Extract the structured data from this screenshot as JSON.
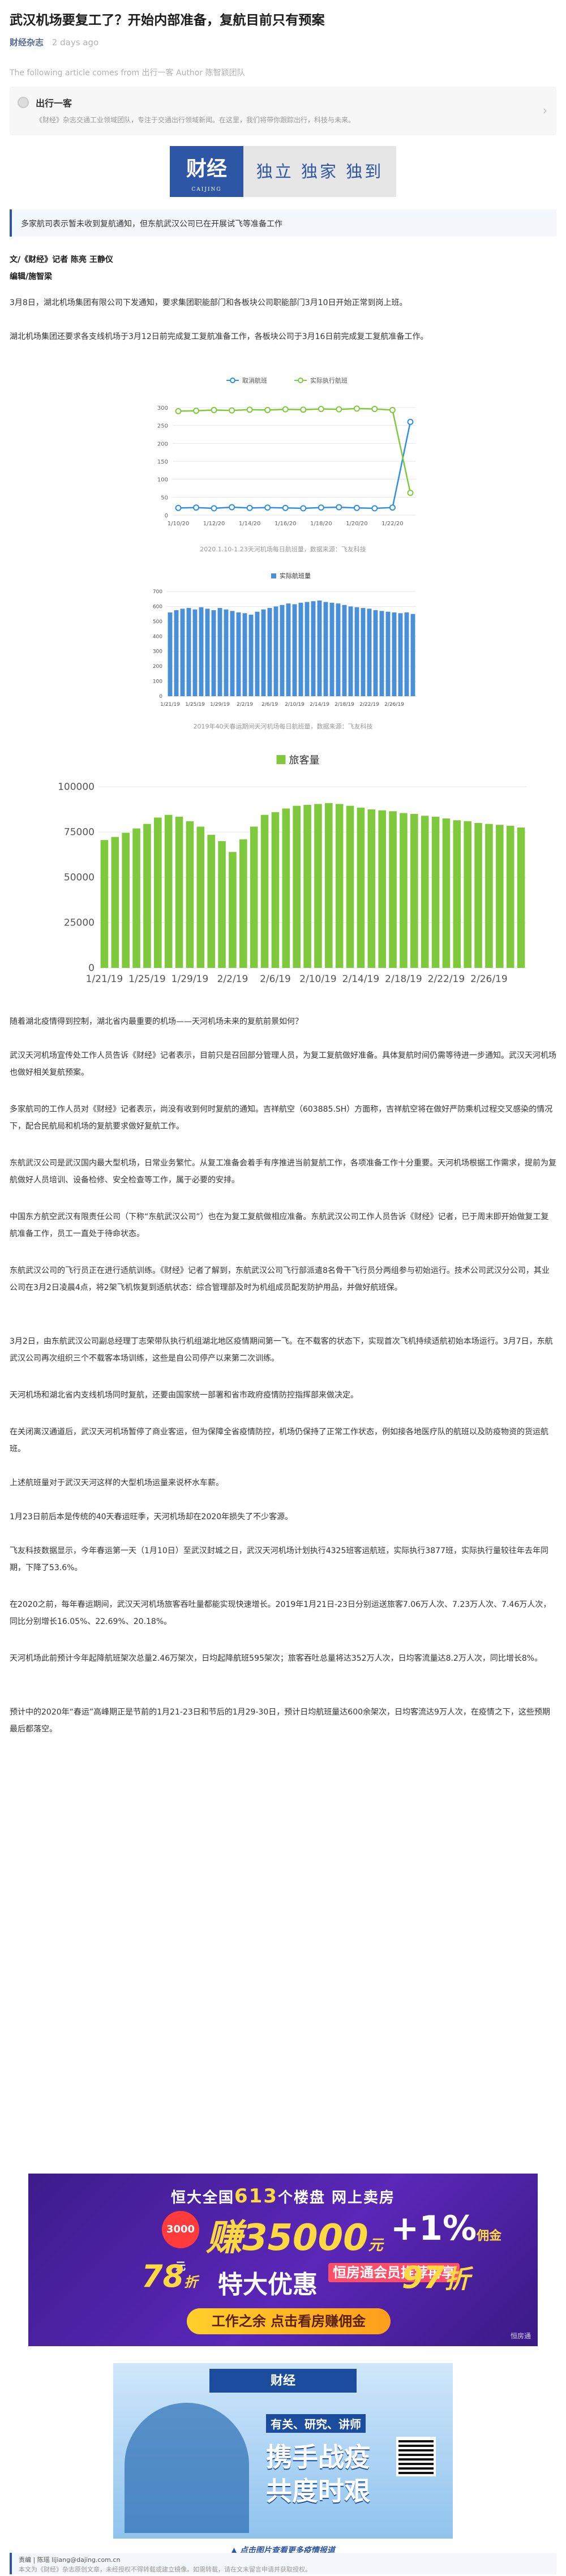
{
  "article": {
    "title": "武汉机场要复工了？开始内部准备，复航目前只有预案",
    "source": "财经杂志",
    "time": "2 days ago",
    "notice": "The following article comes from 出行一客 Author 陈智颖团队"
  },
  "profile": {
    "name": "出行一客",
    "desc": "《财经》杂志交通工业领域团队，专注于交通出行领域新闻。在这里，我们将带你跟踪出行，科技与未来。",
    "chevron": "›"
  },
  "banner": {
    "logo": "财经",
    "logo_sub": "CAIJING",
    "slogan": "独立 独家 独到"
  },
  "summary": "多家航司表示暂未收到复航通知，但东航武汉公司已在开展试飞等准备工作",
  "byline": {
    "author": "文/《财经》记者 陈亮 王静仪",
    "editor": "编辑/施智梁"
  },
  "paragraphs": {
    "p1": "3月8日，湖北机场集团有限公司下发通知，要求集团职能部门和各板块公司职能部门3月10日开始正常到岗上班。",
    "p2": "湖北机场集团还要求各支线机场于3月12日前完成复工复航准备工作，各板块公司于3月16日前完成复工复航准备工作。",
    "p3": "随着湖北疫情得到控制，湖北省内最重要的机场——天河机场未来的复航前景如何？",
    "p4": "武汉天河机场宣传处工作人员告诉《财经》记者表示，目前只是召回部分管理人员，为复工复航做好准备。具体复航时间仍需等待进一步通知。武汉天河机场也做好相关复航预案。",
    "p5": "多家航司的工作人员对《财经》记者表示，尚没有收到何时复航的通知。吉祥航空（603885.SH）方面称，吉祥航空将在做好严防乘机过程交叉感染的情况下，配合民航局和机场的复航要求做好复航工作。",
    "p6": "东航武汉公司是武汉国内最大型机场，日常业务繁忙。从复工准备会着手有序推进当前复航工作，各项准备工作十分重要。天河机场根据工作需求，提前为复航做好人员培训、设备检修、安全检查等工作，属于必要的安排。",
    "p7": "中国东方航空武汉有限责任公司（下称“东航武汉公司”）也在为复工复航做相应准备。东航武汉公司工作人员告诉《财经》记者，已于周末即开始做复工复航准备工作，员工一直处于待命状态。",
    "p8": "东航武汉公司的飞行员正在进行适航训练。《财经》记者了解到，东航武汉公司飞行部派遣8名骨干飞行员分两组参与初始运行。技术公司武汉分公司，其业公司在3月2日凌晨4点，将2架飞机恢复到适航状态：综合管理部及时为机组成员配发防护用品，并做好航班保。",
    "p9": "3月2日，由东航武汉公司副总经理丁志荣带队执行机组湖北地区疫情期间第一飞。在不载客的状态下，实现首次飞机持续适航初始本场运行。3月7日，东航武汉公司再次组织三个不载客本场训练，这些是自公司停产以来第二次训练。",
    "p10": "天河机场和湖北省内支线机场同时复航，还要由国家统一部署和省市政府疫情防控指挥部来做决定。",
    "p11": "在关闭离汉通道后，武汉天河机场暂停了商业客运，但为保障全省疫情防控，机场仍保持了正常工作状态，例如接各地医疗队的航班以及防疫物资的货运航班。",
    "p12": "上述航班量对于武汉天河这样的大型机场运量来说杯水车薪。",
    "p13": "1月23日前后本是传统的40天春运旺季，天河机场却在2020年损失了不少客源。",
    "p14": "飞友科技数据显示，今年春运第一天（1月10日）至武汉封城之日，武汉天河机场计划执行4325班客运航班，实际执行3877班，实际执行量较往年去年同期，下降了53.6%。",
    "p15": "在2020之前，每年春运期间，武汉天河机场旅客吞吐量都能实现快速增长。2019年1月21日-23日分别运送旅客7.06万人次、7.23万人次、7.46万人次，同比分别增长16.05%、22.69%、20.18%。",
    "p16": "天河机场此前预计今年起降航班架次总量2.46万架次，日均起降航班595架次；旅客吞吐总量将达352万人次，日均客流量达8.2万人次，同比增长8%。",
    "p17": "预计中的2020年“春运”高峰期正是节前的1月21-23日和节后的1月29-30日，预计日均航班量达600余架次，日均客流达9万人次，在疫情之下，这些预期最后都落空。"
  },
  "chart1": {
    "caption": "2020.1.10-1.23天河机场每日航班量，数据来源：飞友科技"
  },
  "chart2": {
    "caption": "2019年40天春运期间天河机场每日航班量，数据来源：飞友科技"
  },
  "ad1": {
    "line1_pre": "恒大全国",
    "line1_num": "613",
    "line1_post": "个楼盘 网上卖房",
    "badge": "3000元",
    "big1": "赚35000",
    "big1_unit": "元",
    "big2": "+1%",
    "big2_unit": "佣金",
    "num78": "78",
    "num78_unit": "折",
    "special": "特大优惠",
    "special_tag": "恒房通会员推荐再享",
    "num97": "97",
    "num97_unit": "折",
    "button": "工作之余 点击看房赚佣金",
    "corner": "恒房通"
  },
  "ad2": {
    "top": "财经",
    "hd1": "有关、研究、讲师",
    "hd2": "携手战疫",
    "hd3": "共度时艰",
    "caption": "▲ 点击图片查看更多疫情报道"
  },
  "footer": {
    "line1": "责编 | 陈瑶 lijiang@dajing.com.cn",
    "line2": "本文为《财经》杂志原创文章，未经授权不得转载或建立镜像。如需转载，请在文末留言申请并获取授权。"
  },
  "chart_data": [
    {
      "type": "line",
      "x": [
        "1/10/20",
        "1/11/20",
        "1/12/20",
        "1/13/20",
        "1/14/20",
        "1/15/20",
        "1/16/20",
        "1/17/20",
        "1/18/20",
        "1/19/20",
        "1/20/20",
        "1/21/20",
        "1/22/20",
        "1/23/20"
      ],
      "xticks": [
        "1/10/20",
        "1/12/20",
        "1/14/20",
        "1/16/20",
        "1/18/20",
        "1/20/20",
        "1/22/20"
      ],
      "series": [
        {
          "name": "取消航班",
          "color": "#2f8fe3",
          "values": [
            20,
            21,
            19,
            22,
            20,
            21,
            20,
            19,
            21,
            22,
            20,
            19,
            21,
            260
          ]
        },
        {
          "name": "实际执行航班",
          "color": "#7fca3c",
          "values": [
            290,
            291,
            293,
            292,
            294,
            293,
            295,
            294,
            296,
            295,
            297,
            296,
            293,
            62
          ]
        }
      ],
      "yticks": [
        0,
        50,
        100,
        150,
        200,
        250,
        300
      ],
      "ylim": [
        0,
        300
      ],
      "legend": "top"
    },
    {
      "type": "bar",
      "series": [
        {
          "name": "实际航班量",
          "color": "#4a90d9",
          "values": [
            560,
            575,
            585,
            590,
            580,
            595,
            585,
            575,
            590,
            580,
            570,
            560,
            555,
            545,
            565,
            580,
            590,
            600,
            610,
            620,
            615,
            625,
            630,
            635,
            640,
            630,
            625,
            620,
            610,
            600,
            595,
            590,
            585,
            575,
            570,
            565,
            560,
            555,
            560,
            550
          ]
        }
      ],
      "xticks": [
        "1/21/19",
        "1/25/19",
        "1/29/19",
        "2/2/19",
        "2/6/19",
        "2/10/19",
        "2/14/19",
        "2/18/19",
        "2/22/19",
        "2/26/19"
      ],
      "yticks": [
        0,
        100,
        200,
        300,
        400,
        500,
        600,
        700
      ],
      "ylim": [
        0,
        700
      ],
      "legend": "top"
    },
    {
      "type": "bar",
      "series": [
        {
          "name": "旅客量",
          "color": "#7fca3c",
          "values": [
            70600,
            72300,
            74600,
            77000,
            79500,
            83000,
            84500,
            83500,
            81000,
            78000,
            73500,
            70000,
            64000,
            71000,
            78000,
            84500,
            86000,
            88000,
            89500,
            90000,
            90500,
            91000,
            90500,
            89500,
            88500,
            87500,
            87000,
            86500,
            85500,
            85000,
            84000,
            83500,
            82500,
            81500,
            81000,
            80000,
            79500,
            79000,
            78500,
            77500
          ]
        }
      ],
      "xticks": [
        "1/21/19",
        "1/25/19",
        "1/29/19",
        "2/2/19",
        "2/6/19",
        "2/10/19",
        "2/14/19",
        "2/18/19",
        "2/22/19",
        "2/26/19"
      ],
      "yticks": [
        0,
        25000,
        50000,
        75000,
        100000
      ],
      "ylim": [
        0,
        100000
      ],
      "legend": "top"
    }
  ]
}
